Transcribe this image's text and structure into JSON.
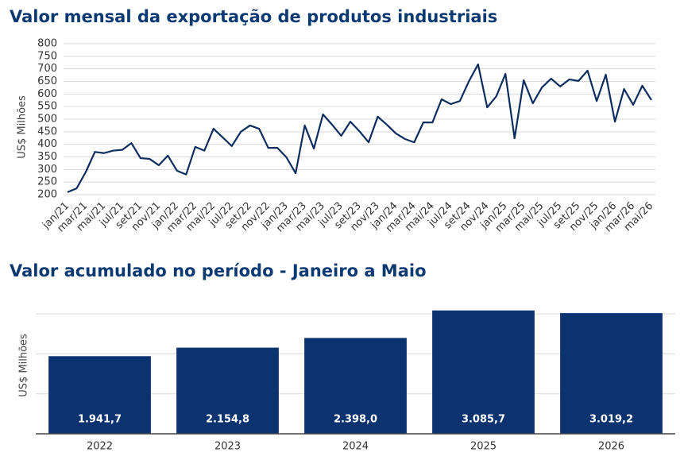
{
  "chart_data": [
    {
      "type": "line",
      "title": "Valor mensal da exportação de produtos industriais",
      "y_label": "US$ Milhões",
      "categories": [
        "jan/21",
        null,
        "mar/21",
        null,
        "mai/21",
        null,
        "jul/21",
        null,
        "set/21",
        null,
        "nov/21",
        null,
        "jan/22",
        null,
        "mar/22",
        null,
        "mai/22",
        null,
        "jul/22",
        null,
        "set/22",
        null,
        "nov/22",
        null,
        "jan/23",
        null,
        "mar/23",
        null,
        "mai/23",
        null,
        "jul/23",
        null,
        "set/23",
        null,
        "nov/23",
        null,
        "jan/24",
        null,
        "mar/24",
        null,
        "mai/24",
        null,
        "jul/24",
        null,
        "set/24",
        null,
        "nov/24",
        null,
        "jan/25",
        null,
        "mar/25",
        null,
        "mai/25",
        null,
        "jul/25",
        null,
        "set/25",
        null,
        "nov/25",
        null,
        "jan/26",
        null,
        "mar/26",
        null,
        "mai/26"
      ],
      "values": [
        210,
        225,
        290,
        370,
        365,
        375,
        378,
        405,
        345,
        342,
        317,
        355,
        295,
        280,
        390,
        375,
        462,
        428,
        393,
        450,
        475,
        462,
        386,
        386,
        348,
        285,
        475,
        383,
        519,
        478,
        434,
        490,
        452,
        408,
        510,
        478,
        443,
        421,
        408,
        487,
        487,
        579,
        560,
        572,
        651,
        718,
        547,
        591,
        680,
        424,
        655,
        563,
        626,
        661,
        630,
        658,
        652,
        693,
        572,
        677,
        490,
        620,
        557,
        633,
        576
      ],
      "color": "#0d2d5e",
      "ylim": [
        200,
        800
      ],
      "yticks": [
        200,
        250,
        300,
        350,
        400,
        450,
        500,
        550,
        600,
        650,
        700,
        750,
        800
      ],
      "grid": true
    },
    {
      "type": "bar",
      "title": "Valor acumulado no período - Janeiro a Maio",
      "y_label": "US$ Milhões",
      "categories": [
        "2022",
        "2023",
        "2024",
        "2025",
        "2026"
      ],
      "values": [
        1941.7,
        2154.8,
        2398.0,
        3085.7,
        3019.2
      ],
      "value_labels": [
        "1.941,7",
        "2.154,8",
        "2.398,0",
        "3.085,7",
        "3.019,2"
      ],
      "color": "#0b3370",
      "ylim": [
        0,
        3200
      ],
      "yticks": [
        1000,
        2000,
        3000
      ],
      "show_tick_labels": false,
      "grid": true
    }
  ]
}
